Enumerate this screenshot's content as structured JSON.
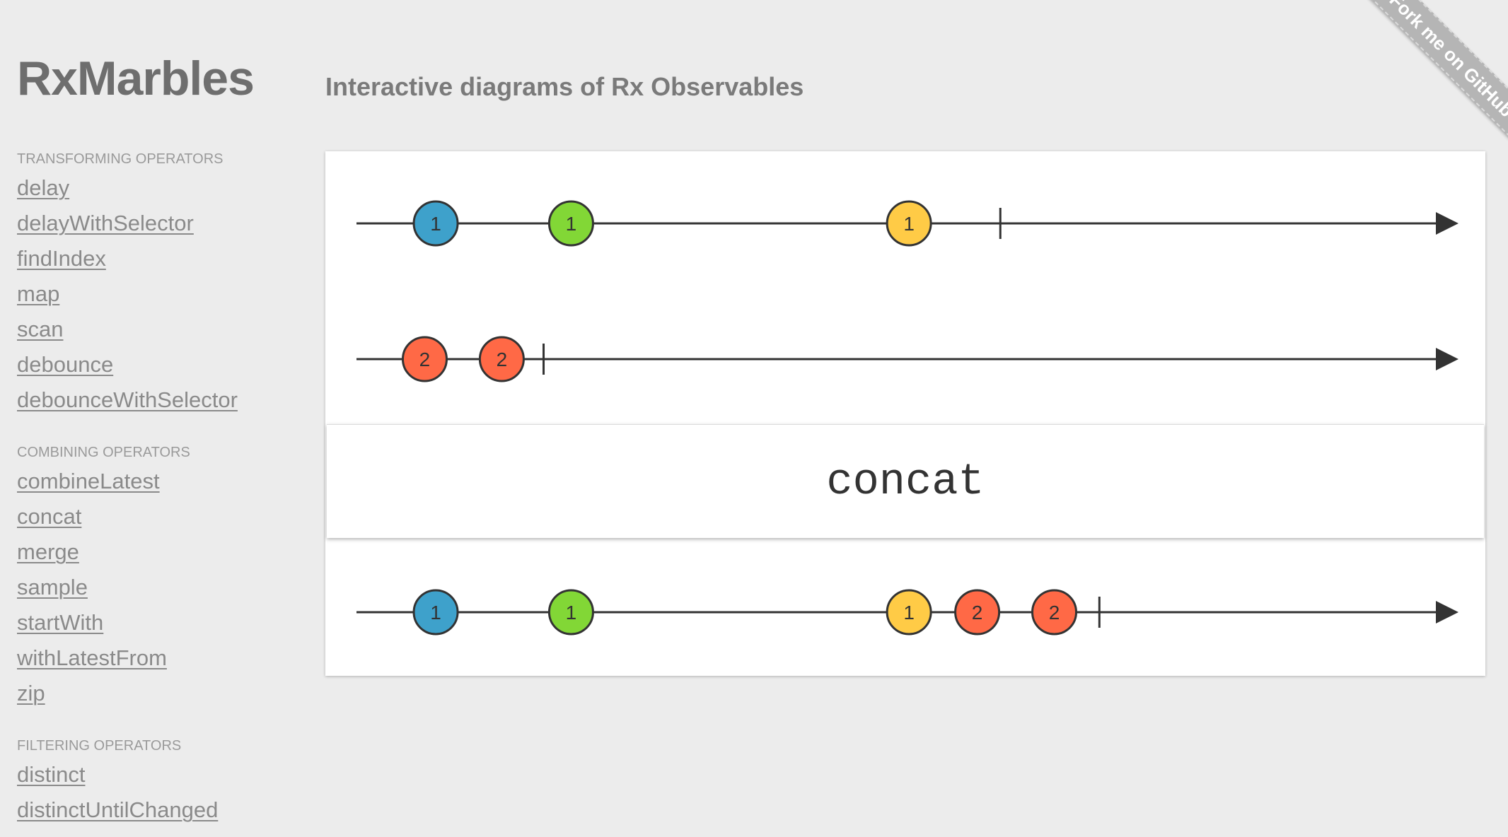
{
  "header": {
    "logo": "RxMarbles",
    "tagline": "Interactive diagrams of Rx Observables"
  },
  "ribbon": {
    "label": "Fork me on GitHub"
  },
  "sidebar": {
    "sections": [
      {
        "title": "TRANSFORMING OPERATORS",
        "items": [
          "delay",
          "delayWithSelector",
          "findIndex",
          "map",
          "scan",
          "debounce",
          "debounceWithSelector"
        ]
      },
      {
        "title": "COMBINING OPERATORS",
        "items": [
          "combineLatest",
          "concat",
          "merge",
          "sample",
          "startWith",
          "withLatestFrom",
          "zip"
        ]
      },
      {
        "title": "FILTERING OPERATORS",
        "items": [
          "distinct",
          "distinctUntilChanged"
        ]
      }
    ]
  },
  "diagram": {
    "operator": "concat",
    "colors": {
      "blue": "#3ea1cb",
      "green": "#82d736",
      "yellow": "#ffcb46",
      "red": "#ff6946",
      "line": "#333333"
    },
    "streams": [
      {
        "name": "input-1",
        "completion": 58.5,
        "marbles": [
          {
            "value": "1",
            "time": 7.2,
            "color": "blue"
          },
          {
            "value": "1",
            "time": 19.5,
            "color": "green"
          },
          {
            "value": "1",
            "time": 50.2,
            "color": "yellow"
          }
        ]
      },
      {
        "name": "input-2",
        "completion": 17,
        "marbles": [
          {
            "value": "2",
            "time": 6.2,
            "color": "red"
          },
          {
            "value": "2",
            "time": 13.2,
            "color": "red"
          }
        ]
      },
      {
        "name": "output",
        "completion": 67.5,
        "marbles": [
          {
            "value": "1",
            "time": 7.2,
            "color": "blue"
          },
          {
            "value": "1",
            "time": 19.5,
            "color": "green"
          },
          {
            "value": "1",
            "time": 50.2,
            "color": "yellow"
          },
          {
            "value": "2",
            "time": 56.4,
            "color": "red"
          },
          {
            "value": "2",
            "time": 63.4,
            "color": "red"
          }
        ]
      }
    ]
  }
}
